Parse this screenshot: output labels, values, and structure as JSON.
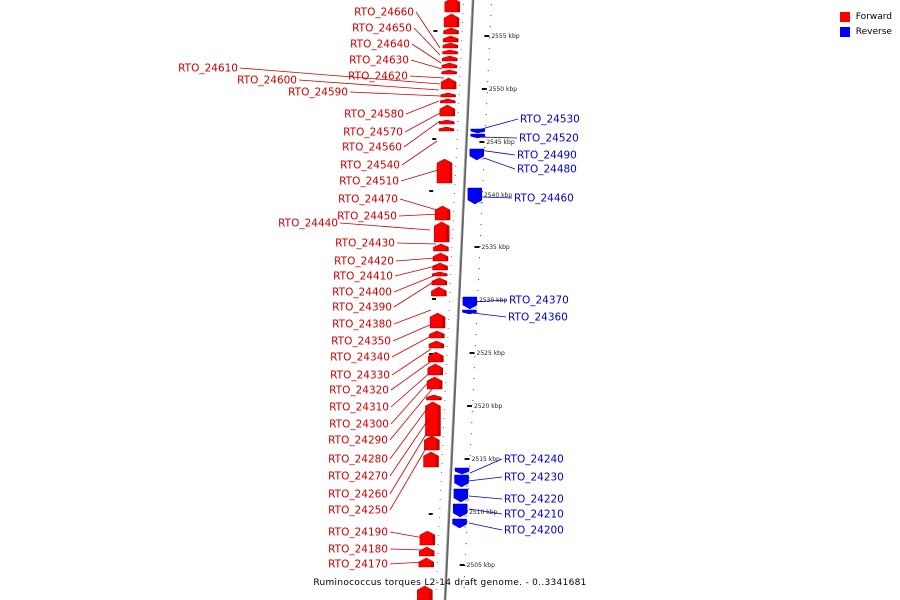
{
  "caption": "Ruminococcus torques L2-14 draft genome. - 0..3341681",
  "legend": [
    {
      "label": "Forward",
      "color": "#ff0000"
    },
    {
      "label": "Reverse",
      "color": "#0000ff"
    }
  ],
  "colors": {
    "forward": "#ff0000",
    "reverse": "#0000ff",
    "label_forward": "#cc0000",
    "label_reverse": "#0000cc"
  },
  "scale_labels": [
    "2555 kbp",
    "2550 kbp",
    "2545 kbp",
    "2540 kbp",
    "2535 kbp",
    "2530 kbp",
    "2525 kbp",
    "2520 kbp",
    "2515 kbp",
    "2510 kbp",
    "2505 kbp"
  ],
  "forward_genes": [
    "RTO_24660",
    "RTO_24650",
    "RTO_24640",
    "RTO_24630",
    "RTO_24620",
    "RTO_24610",
    "RTO_24600",
    "RTO_24590",
    "RTO_24580",
    "RTO_24570",
    "RTO_24560",
    "RTO_24540",
    "RTO_24510",
    "RTO_24470",
    "RTO_24450",
    "RTO_24440",
    "RTO_24430",
    "RTO_24420",
    "RTO_24410",
    "RTO_24400",
    "RTO_24390",
    "RTO_24380",
    "RTO_24350",
    "RTO_24340",
    "RTO_24330",
    "RTO_24320",
    "RTO_24310",
    "RTO_24300",
    "RTO_24290",
    "RTO_24280",
    "RTO_24270",
    "RTO_24260",
    "RTO_24250",
    "RTO_24190",
    "RTO_24180",
    "RTO_24170"
  ],
  "reverse_genes": [
    "RTO_24530",
    "RTO_24520",
    "RTO_24490",
    "RTO_24480",
    "RTO_24460",
    "RTO_24370",
    "RTO_24360",
    "RTO_24240",
    "RTO_24230",
    "RTO_24220",
    "RTO_24210",
    "RTO_24200"
  ]
}
